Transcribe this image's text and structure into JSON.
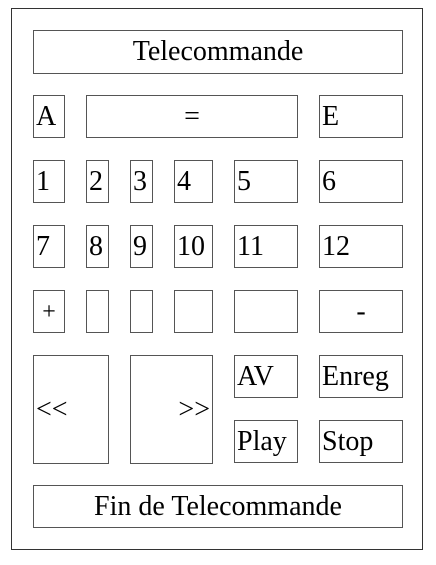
{
  "title": "Telecommande",
  "footer": "Fin de Telecommande",
  "row1": {
    "a": "A",
    "equals": "=",
    "e": "E"
  },
  "digits": {
    "d1": "1",
    "d2": "2",
    "d3": "3",
    "d4": "4",
    "d5": "5",
    "d6": "6",
    "d7": "7",
    "d8": "8",
    "d9": "9",
    "d10": "10",
    "d11": "11",
    "d12": "12"
  },
  "row4": {
    "plus": "+",
    "minus": "-"
  },
  "transport": {
    "rewind": "<<",
    "forward": ">>",
    "av": "AV",
    "record": "Enreg",
    "play": "Play",
    "stop": "Stop"
  }
}
